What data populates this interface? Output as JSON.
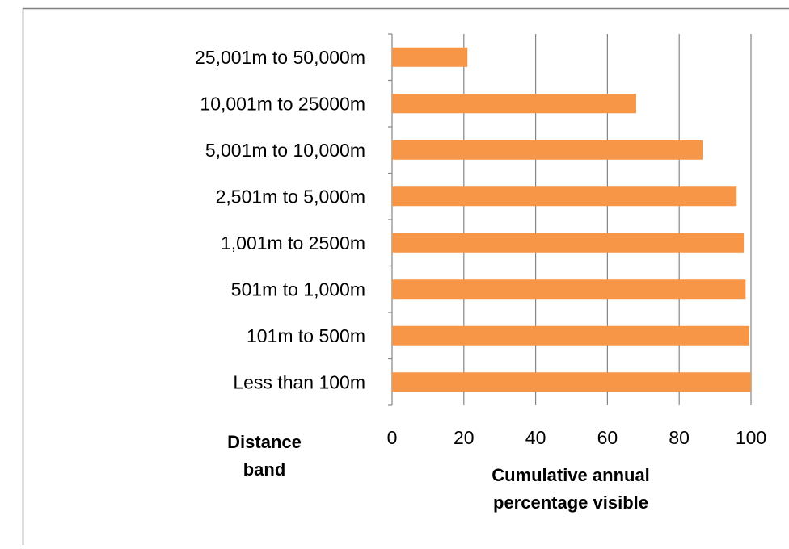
{
  "chart_data": {
    "type": "bar",
    "orientation": "horizontal",
    "categories": [
      "25,001m to 50,000m",
      "10,001m to 25000m",
      "5,001m to 10,000m",
      "2,501m to 5,000m",
      "1,001m to 2500m",
      "501m to 1,000m",
      "101m to 500m",
      "Less than 100m"
    ],
    "values": [
      21,
      68,
      86.5,
      96,
      98,
      98.5,
      99.5,
      100
    ],
    "xlim": [
      0,
      100
    ],
    "xticks": [
      "0",
      "20",
      "40",
      "60",
      "80",
      "100"
    ],
    "xlabel": [
      "Cumulative annual",
      "percentage visible"
    ],
    "ylabel": [
      "Distance",
      "band"
    ],
    "bar_color": "#F79646",
    "grid_color": "#868686",
    "grid": true,
    "legend": false
  }
}
